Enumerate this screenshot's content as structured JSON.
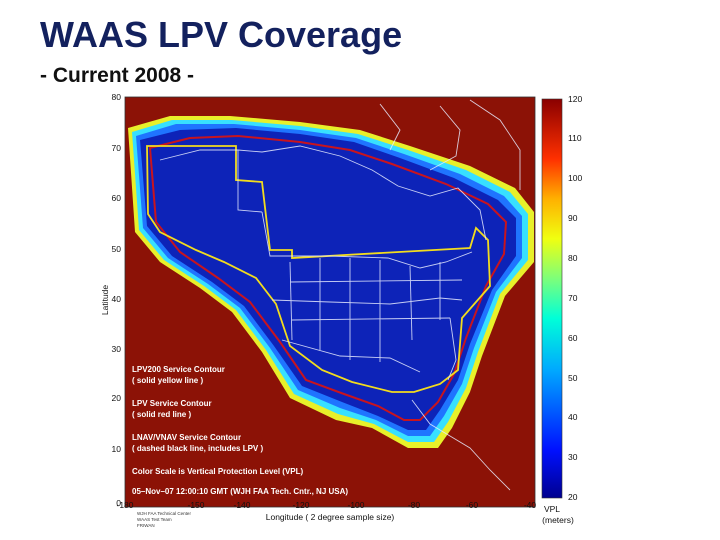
{
  "slide": {
    "title": "WAAS LPV Coverage",
    "subtitle": "- Current 2008 -"
  },
  "map": {
    "x_axis": {
      "label": "Longitude   ( 2 degree sample size)",
      "ticks": [
        "-180",
        "-150",
        "-140",
        "-120",
        "-100",
        "-80",
        "-60",
        "-40"
      ]
    },
    "y_axis": {
      "label": "Latitude",
      "ticks": [
        "80",
        "70",
        "60",
        "50",
        "40",
        "30",
        "20",
        "10",
        "0"
      ]
    },
    "legend": [
      "LPV200 Service Contour",
      "( solid yellow line )",
      "LPV Service Contour",
      "( solid red line )",
      "LNAV/VNAV Service Contour",
      "( dashed black line, includes LPV )",
      "Color Scale is Vertical Protection Level (VPL)",
      "05–Nov–07 12:00:10 GMT  (WJH FAA Tech. Cntr., NJ USA)"
    ],
    "footer_note": [
      "WJH FAA Technical Center",
      "WAAS Test Team",
      "FRIWAN"
    ],
    "colorbar": {
      "ticks": [
        "120",
        "110",
        "100",
        "90",
        "80",
        "70",
        "60",
        "50",
        "40",
        "30",
        "20"
      ],
      "label_line1": "VPL",
      "label_line2": "(meters)",
      "range": [
        20,
        120
      ]
    },
    "colors": {
      "ocean": "#8c1206",
      "coverage": "#0d23b8",
      "lpv200_contour": "#f2dc1e",
      "lpv_contour": "#c8141e",
      "borders": "#e8ecff"
    }
  }
}
